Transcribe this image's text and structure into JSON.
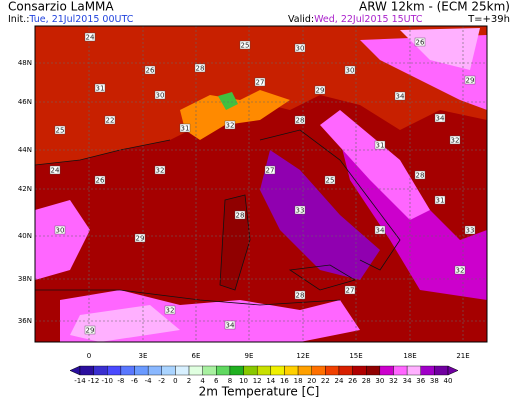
{
  "header": {
    "left": "Consarzio LaMMA",
    "right": "ARW 12km - (ECM 25km)",
    "init_label": "Init.:",
    "init_date": "Tue, 21Jul2015 00UTC",
    "valid_label": "Valid:",
    "valid_date": "Wed, 22Jul2015 15UTC",
    "lead": "T=+39h"
  },
  "map": {
    "lat_labels": [
      "48N",
      "46N",
      "44N",
      "42N",
      "40N",
      "38N",
      "36N"
    ],
    "lon_labels": [
      "0",
      "3E",
      "6E",
      "9E",
      "12E",
      "15E",
      "18E",
      "21E"
    ],
    "stations": [
      "24",
      "26",
      "28",
      "25",
      "30",
      "30",
      "26",
      "29",
      "34",
      "32",
      "31",
      "30",
      "27",
      "29",
      "34",
      "25",
      "22",
      "31",
      "32",
      "28",
      "31",
      "28",
      "24",
      "26",
      "32",
      "27",
      "25",
      "31",
      "33",
      "30",
      "29",
      "28",
      "33",
      "34",
      "32",
      "29",
      "32",
      "34",
      "28",
      "27"
    ]
  },
  "colorbar": {
    "ticks": [
      -14,
      -12,
      -10,
      -8,
      -6,
      -4,
      -2,
      0,
      2,
      4,
      6,
      8,
      10,
      12,
      14,
      16,
      18,
      20,
      22,
      24,
      26,
      28,
      30,
      32,
      34,
      36,
      38,
      40
    ],
    "colors": [
      "#2b0f9e",
      "#3a2fd0",
      "#4a4aff",
      "#5a78ff",
      "#6a9aff",
      "#8ab8ff",
      "#aad4ff",
      "#d8f0ff",
      "#e0ffe0",
      "#a8f0a0",
      "#60d860",
      "#20b020",
      "#88c800",
      "#c8e000",
      "#f0f000",
      "#ffd000",
      "#ffa000",
      "#ff7000",
      "#f04000",
      "#d82000",
      "#b00000",
      "#900000",
      "#cc00cc",
      "#ff66ff",
      "#ffb0ff",
      "#a000c8",
      "#7000a0"
    ],
    "title": "2m Temperature [C]"
  }
}
